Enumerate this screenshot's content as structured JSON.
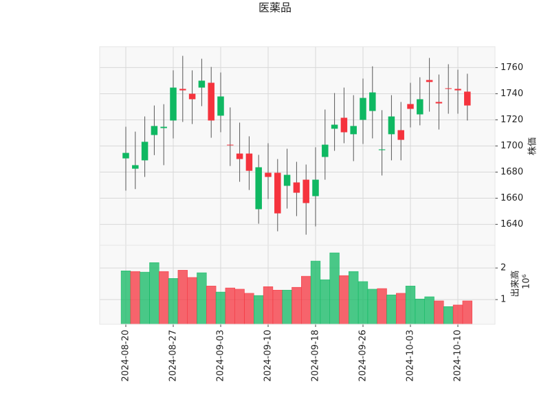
{
  "chart_data": {
    "type": "candlestick",
    "title": "医薬品",
    "y_label": "株価",
    "categories": [
      "2024-08-20",
      null,
      null,
      null,
      null,
      "2024-08-27",
      null,
      null,
      null,
      null,
      "2024-09-03",
      null,
      null,
      null,
      null,
      "2024-09-10",
      null,
      null,
      null,
      null,
      "2024-09-18",
      null,
      null,
      null,
      null,
      "2024-09-26",
      null,
      null,
      null,
      null,
      "2024-10-03",
      null,
      null,
      null,
      null,
      "2024-10-10",
      null
    ],
    "open": [
      1690.5,
      1682.6,
      1689,
      1708.4,
      1713.7,
      1719.5,
      1743.7,
      1740,
      1744.7,
      1748.4,
      1723.2,
      1701,
      1694.2,
      1694.2,
      1651.6,
      1679.5,
      1679.5,
      1669.5,
      1672.1,
      1674.2,
      1661.6,
      1691.6,
      1713.2,
      1721.6,
      1709,
      1720,
      1726.8,
      1696.8,
      1709,
      1712.1,
      1732.1,
      1724.2,
      1750.5,
      1733.7,
      1744.2,
      1743.7,
      1741.6
    ],
    "high": [
      1714.7,
      1711,
      1722.6,
      1731,
      1732,
      1757.9,
      1769,
      1757.9,
      1766.8,
      1760.5,
      1756.3,
      1729.5,
      1717.9,
      1707.4,
      1693.2,
      1702.1,
      1690,
      1697.9,
      1687.9,
      1685.8,
      1699,
      1727.9,
      1740.5,
      1744.7,
      1738.9,
      1751.6,
      1761,
      1727.4,
      1738.9,
      1733.7,
      1748.4,
      1752.6,
      1767.4,
      1754.7,
      1762.6,
      1758.4,
      1755.3
    ],
    "low": [
      1665.8,
      1667,
      1676.3,
      1693,
      1685.3,
      1705.8,
      1718.4,
      1716.8,
      1730.5,
      1706.3,
      1710.5,
      1684.7,
      1672.6,
      1666.3,
      1640.5,
      1659.5,
      1634.7,
      1652.1,
      1646.3,
      1632.1,
      1638.4,
      1674.2,
      1696.3,
      1702.1,
      1688.4,
      1701.6,
      1705.8,
      1677.4,
      1689,
      1689,
      1714.2,
      1715.8,
      1726.3,
      1712.6,
      1724.7,
      1724.7,
      1719.5
    ],
    "close": [
      1694.7,
      1685.3,
      1703.2,
      1715.3,
      1714.7,
      1744.7,
      1742.6,
      1735.8,
      1750,
      1719.5,
      1737.9,
      1700.5,
      1690,
      1681,
      1683.7,
      1676.3,
      1648.4,
      1677.9,
      1664.2,
      1656.3,
      1674.2,
      1701,
      1716.3,
      1710.5,
      1715.3,
      1736.8,
      1741,
      1697.4,
      1722.6,
      1704.7,
      1728.4,
      1735.8,
      1749,
      1732.6,
      1743.7,
      1742.6,
      1731
    ],
    "ylim": [
      1624,
      1776
    ],
    "yticks": [
      1640,
      1660,
      1680,
      1700,
      1720,
      1740,
      1760
    ],
    "up_color": "#0fb862",
    "down_color": "#f5333d",
    "grid": true,
    "volume": {
      "label": "出来高",
      "offset_text": "10⁶",
      "values": [
        1.91,
        1.89,
        1.87,
        2.17,
        1.89,
        1.67,
        1.93,
        1.7,
        1.85,
        1.43,
        1.24,
        1.37,
        1.33,
        1.2,
        1.13,
        1.41,
        1.3,
        1.3,
        1.39,
        1.74,
        2.22,
        1.63,
        2.48,
        1.76,
        1.89,
        1.57,
        1.33,
        1.35,
        1.15,
        1.2,
        1.43,
        1.02,
        1.09,
        0.96,
        0.78,
        0.83,
        0.96
      ],
      "ylim": [
        0.22,
        2.72
      ],
      "yticks": [
        1,
        2
      ]
    }
  }
}
